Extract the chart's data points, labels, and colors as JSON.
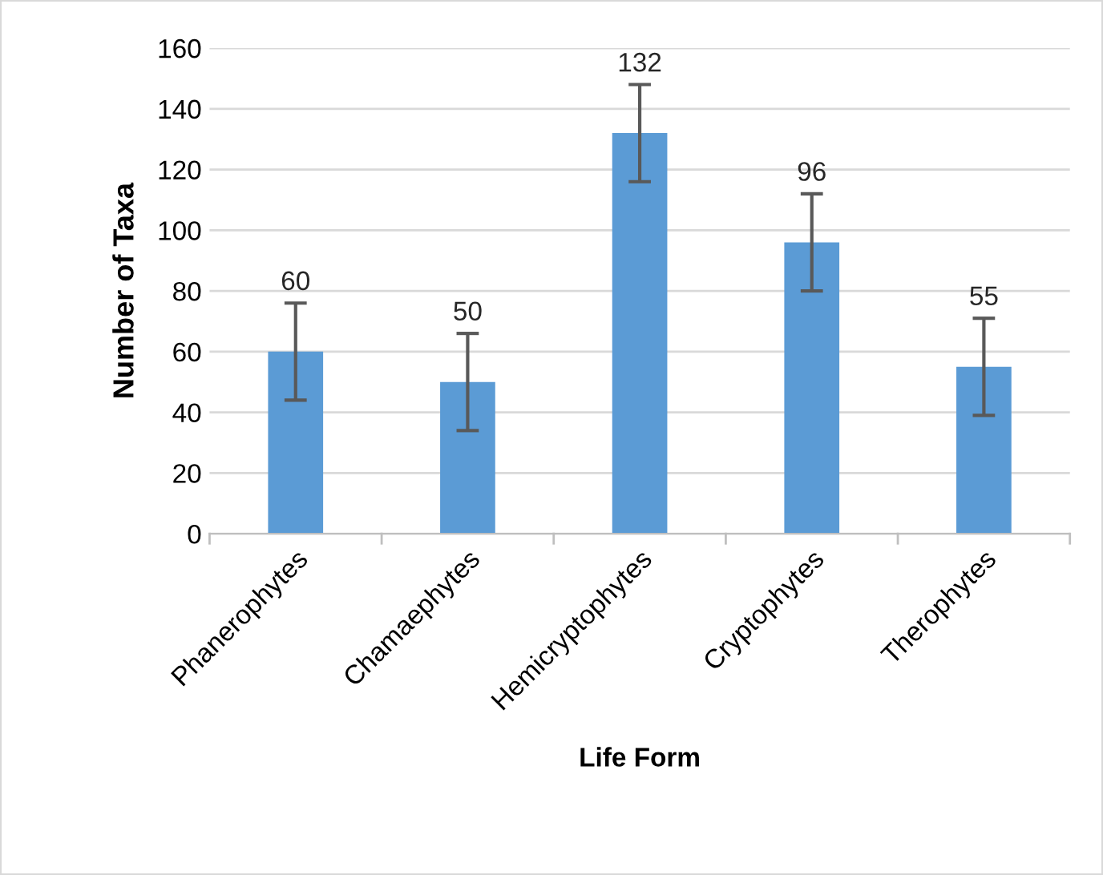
{
  "chart_data": {
    "type": "bar",
    "xlabel": "Life Form",
    "ylabel": "Number of Taxa",
    "categories": [
      "Phanerophytes",
      "Chamaephytes",
      "Hemicryptophytes",
      "Cryptophytes",
      "Therophytes"
    ],
    "values": [
      60,
      50,
      132,
      96,
      55
    ],
    "errors": [
      16,
      16,
      16,
      16,
      16
    ],
    "color": "#5b9bd5",
    "ylim": [
      0,
      160
    ],
    "yticks": [
      0,
      20,
      40,
      60,
      80,
      100,
      120,
      140,
      160
    ],
    "grid": "y",
    "data_labels": true,
    "legend": false
  }
}
